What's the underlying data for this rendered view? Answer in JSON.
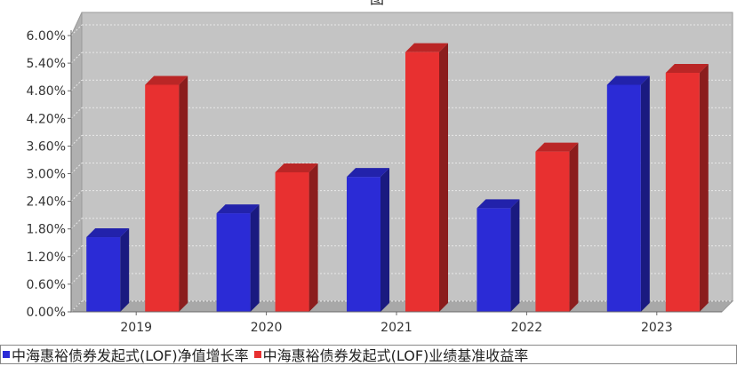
{
  "chart_data": {
    "type": "bar",
    "title": "图",
    "categories": [
      "2019",
      "2020",
      "2021",
      "2022",
      "2023"
    ],
    "series": [
      {
        "name": "中海惠裕债券发起式(LOF)净值增长率",
        "values": [
          1.62,
          2.14,
          2.93,
          2.25,
          4.93
        ],
        "color": "#2b2bd6"
      },
      {
        "name": "中海惠裕债券发起式(LOF)业绩基准收益率",
        "values": [
          4.93,
          3.03,
          5.64,
          3.48,
          5.19
        ],
        "color": "#e83030"
      }
    ],
    "y_ticks": [
      "0.00%",
      "0.60%",
      "1.20%",
      "1.80%",
      "2.40%",
      "3.00%",
      "3.60%",
      "4.20%",
      "4.80%",
      "5.40%",
      "6.00%"
    ],
    "ylim": [
      0,
      6.0
    ],
    "grid": true,
    "legend_position": "bottom",
    "xlabel": "",
    "ylabel": ""
  }
}
